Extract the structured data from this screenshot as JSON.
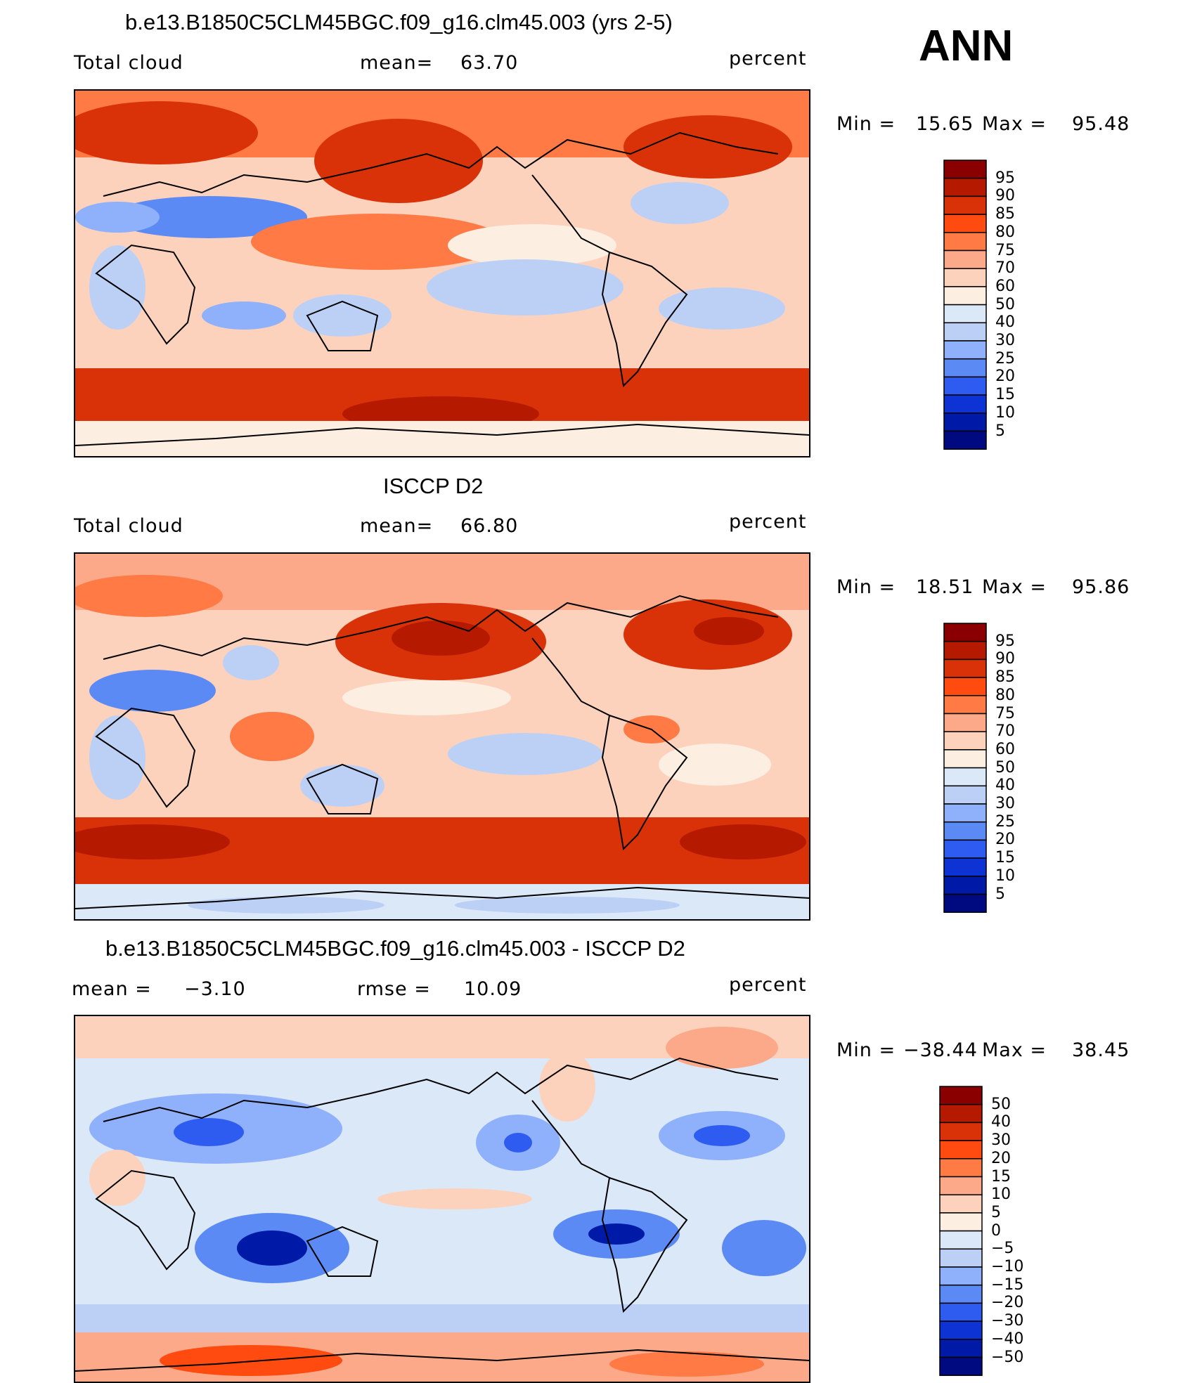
{
  "season": "ANN",
  "chart_data": [
    {
      "type": "heatmap",
      "title": "b.e13.B1850C5CLM45BGC.f09_g16.clm45.003 (yrs 2-5)",
      "left_label": "Total cloud",
      "stat_label": "mean=",
      "stat_value": "63.70",
      "units": "percent",
      "min_label": "Min =",
      "min_value": "15.65",
      "max_label": "Max =",
      "max_value": "95.48",
      "levels": [
        "95",
        "90",
        "85",
        "80",
        "75",
        "70",
        "60",
        "50",
        "40",
        "30",
        "25",
        "20",
        "15",
        "10",
        "5"
      ]
    },
    {
      "type": "heatmap",
      "title": "ISCCP D2",
      "left_label": "Total cloud",
      "stat_label": "mean=",
      "stat_value": "66.80",
      "units": "percent",
      "min_label": "Min =",
      "min_value": "18.51",
      "max_label": "Max =",
      "max_value": "95.86",
      "levels": [
        "95",
        "90",
        "85",
        "80",
        "75",
        "70",
        "60",
        "50",
        "40",
        "30",
        "25",
        "20",
        "15",
        "10",
        "5"
      ]
    },
    {
      "type": "heatmap",
      "title": "b.e13.B1850C5CLM45BGC.f09_g16.clm45.003 - ISCCP D2",
      "left_label": "mean =",
      "left_value": "−3.10",
      "stat_label": "rmse =",
      "stat_value": "10.09",
      "units": "percent",
      "min_label": "Min =",
      "min_value": "−38.44",
      "max_label": "Max =",
      "max_value": "38.45",
      "levels": [
        "50",
        "40",
        "30",
        "20",
        "15",
        "10",
        "5",
        "0",
        "−5",
        "−10",
        "−15",
        "−20",
        "−30",
        "−40",
        "−50"
      ]
    }
  ],
  "colors": {
    "seq_top_to_bottom": [
      "#8a0000",
      "#b51a00",
      "#d93208",
      "#ff4a10",
      "#ff7a45",
      "#fca98a",
      "#fdd2bd",
      "#fdeee2",
      "#dbe8f8",
      "#bcd0f6",
      "#8fb0fa",
      "#5b8af4",
      "#2f5cf0",
      "#0d33d4",
      "#001aa8",
      "#000a80"
    ],
    "div_top_to_bottom": [
      "#8a0000",
      "#b51a00",
      "#d93208",
      "#ff4a10",
      "#ff7a45",
      "#fca98a",
      "#fdd2bd",
      "#fdeee2",
      "#dbe8f8",
      "#bcd0f6",
      "#8fb0fa",
      "#5b8af4",
      "#2f5cf0",
      "#0d33d4",
      "#001aa8",
      "#000a80"
    ]
  }
}
